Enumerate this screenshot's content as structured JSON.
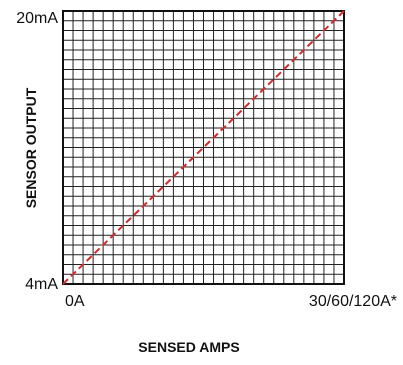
{
  "chart_data": {
    "type": "line",
    "title": "",
    "xlabel": "SENSED AMPS",
    "ylabel": "SENSOR OUTPUT",
    "x_tick_labels": [
      "0A",
      "30/60/120A*"
    ],
    "y_tick_labels": [
      "4mA",
      "20mA"
    ],
    "grid": true,
    "grid_divisions": 28,
    "series": [
      {
        "x": [
          0,
          100
        ],
        "y": [
          4,
          20
        ],
        "color": "#d42a2a",
        "style": "dashed"
      }
    ],
    "xlim": [
      0,
      100
    ],
    "ylim": [
      4,
      20
    ]
  }
}
